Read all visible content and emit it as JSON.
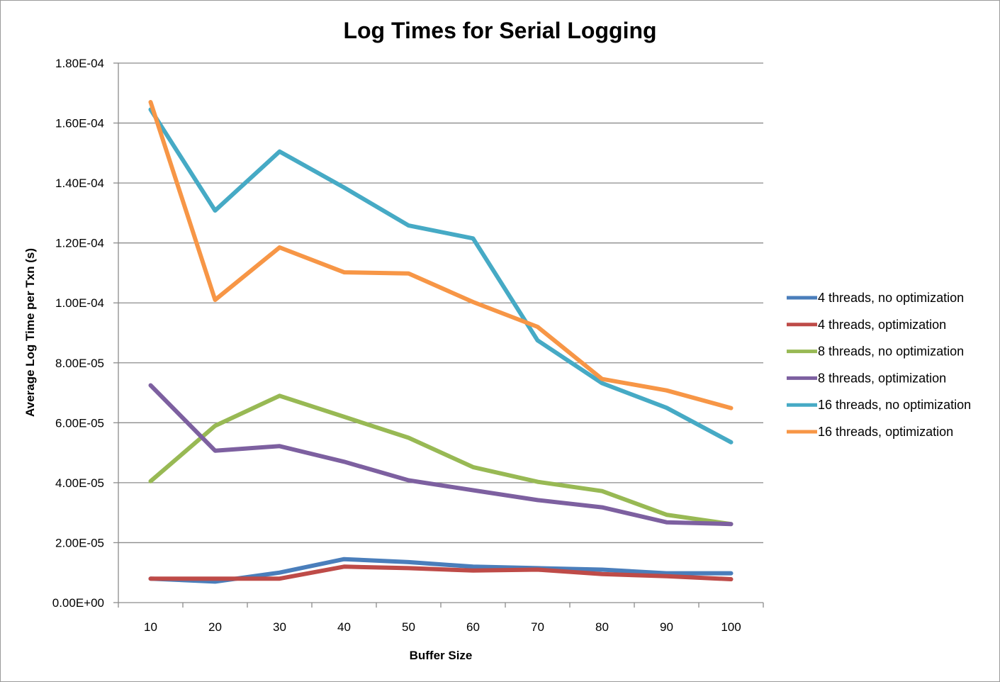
{
  "chart_data": {
    "type": "line",
    "title": "Log Times for Serial Logging",
    "xlabel": "Buffer Size",
    "ylabel": "Average Log Time per Txn (s)",
    "x": [
      10,
      20,
      30,
      40,
      50,
      60,
      70,
      80,
      90,
      100
    ],
    "ylim": [
      0,
      0.00018
    ],
    "y_ticks": [
      0,
      2e-05,
      4e-05,
      6e-05,
      8e-05,
      0.0001,
      0.00012,
      0.00014,
      0.00016,
      0.00018
    ],
    "y_tick_labels": [
      "0.00E+00",
      "2.00E-05",
      "4.00E-05",
      "6.00E-05",
      "8.00E-05",
      "1.00E-04",
      "1.20E-04",
      "1.40E-04",
      "1.60E-04",
      "1.80E-04"
    ],
    "x_tick_labels": [
      "10",
      "20",
      "30",
      "40",
      "50",
      "60",
      "70",
      "80",
      "90",
      "100"
    ],
    "grid": true,
    "legend_position": "right",
    "series": [
      {
        "name": "4 threads, no optimization",
        "color": "#4a7ebb",
        "values": [
          8e-06,
          7e-06,
          1e-05,
          1.45e-05,
          1.35e-05,
          1.2e-05,
          1.15e-05,
          1.1e-05,
          9.8e-06,
          9.8e-06
        ]
      },
      {
        "name": "4 threads, optimization",
        "color": "#be4b48",
        "values": [
          8e-06,
          8e-06,
          8e-06,
          1.2e-05,
          1.15e-05,
          1.07e-05,
          1.1e-05,
          9.5e-06,
          8.8e-06,
          7.8e-06
        ]
      },
      {
        "name": "8 threads, no optimization",
        "color": "#98b954",
        "values": [
          4.05e-05,
          5.9e-05,
          6.9e-05,
          6.2e-05,
          5.5e-05,
          4.52e-05,
          4.03e-05,
          3.72e-05,
          2.93e-05,
          2.62e-05
        ]
      },
      {
        "name": "8 threads, optimization",
        "color": "#7d60a0",
        "values": [
          7.25e-05,
          5.07e-05,
          5.22e-05,
          4.7e-05,
          4.08e-05,
          3.75e-05,
          3.42e-05,
          3.18e-05,
          2.68e-05,
          2.62e-05
        ]
      },
      {
        "name": "16 threads, no optimization",
        "color": "#46aac5",
        "values": [
          0.0001645,
          0.0001308,
          0.0001505,
          0.0001385,
          0.0001258,
          0.0001215,
          8.75e-05,
          7.32e-05,
          6.5e-05,
          5.35e-05
        ]
      },
      {
        "name": "16 threads, optimization",
        "color": "#f79646",
        "values": [
          0.000167,
          0.000101,
          0.0001185,
          0.0001102,
          0.0001098,
          0.0001003,
          9.2e-05,
          7.46e-05,
          7.08e-05,
          6.49e-05
        ]
      }
    ]
  }
}
